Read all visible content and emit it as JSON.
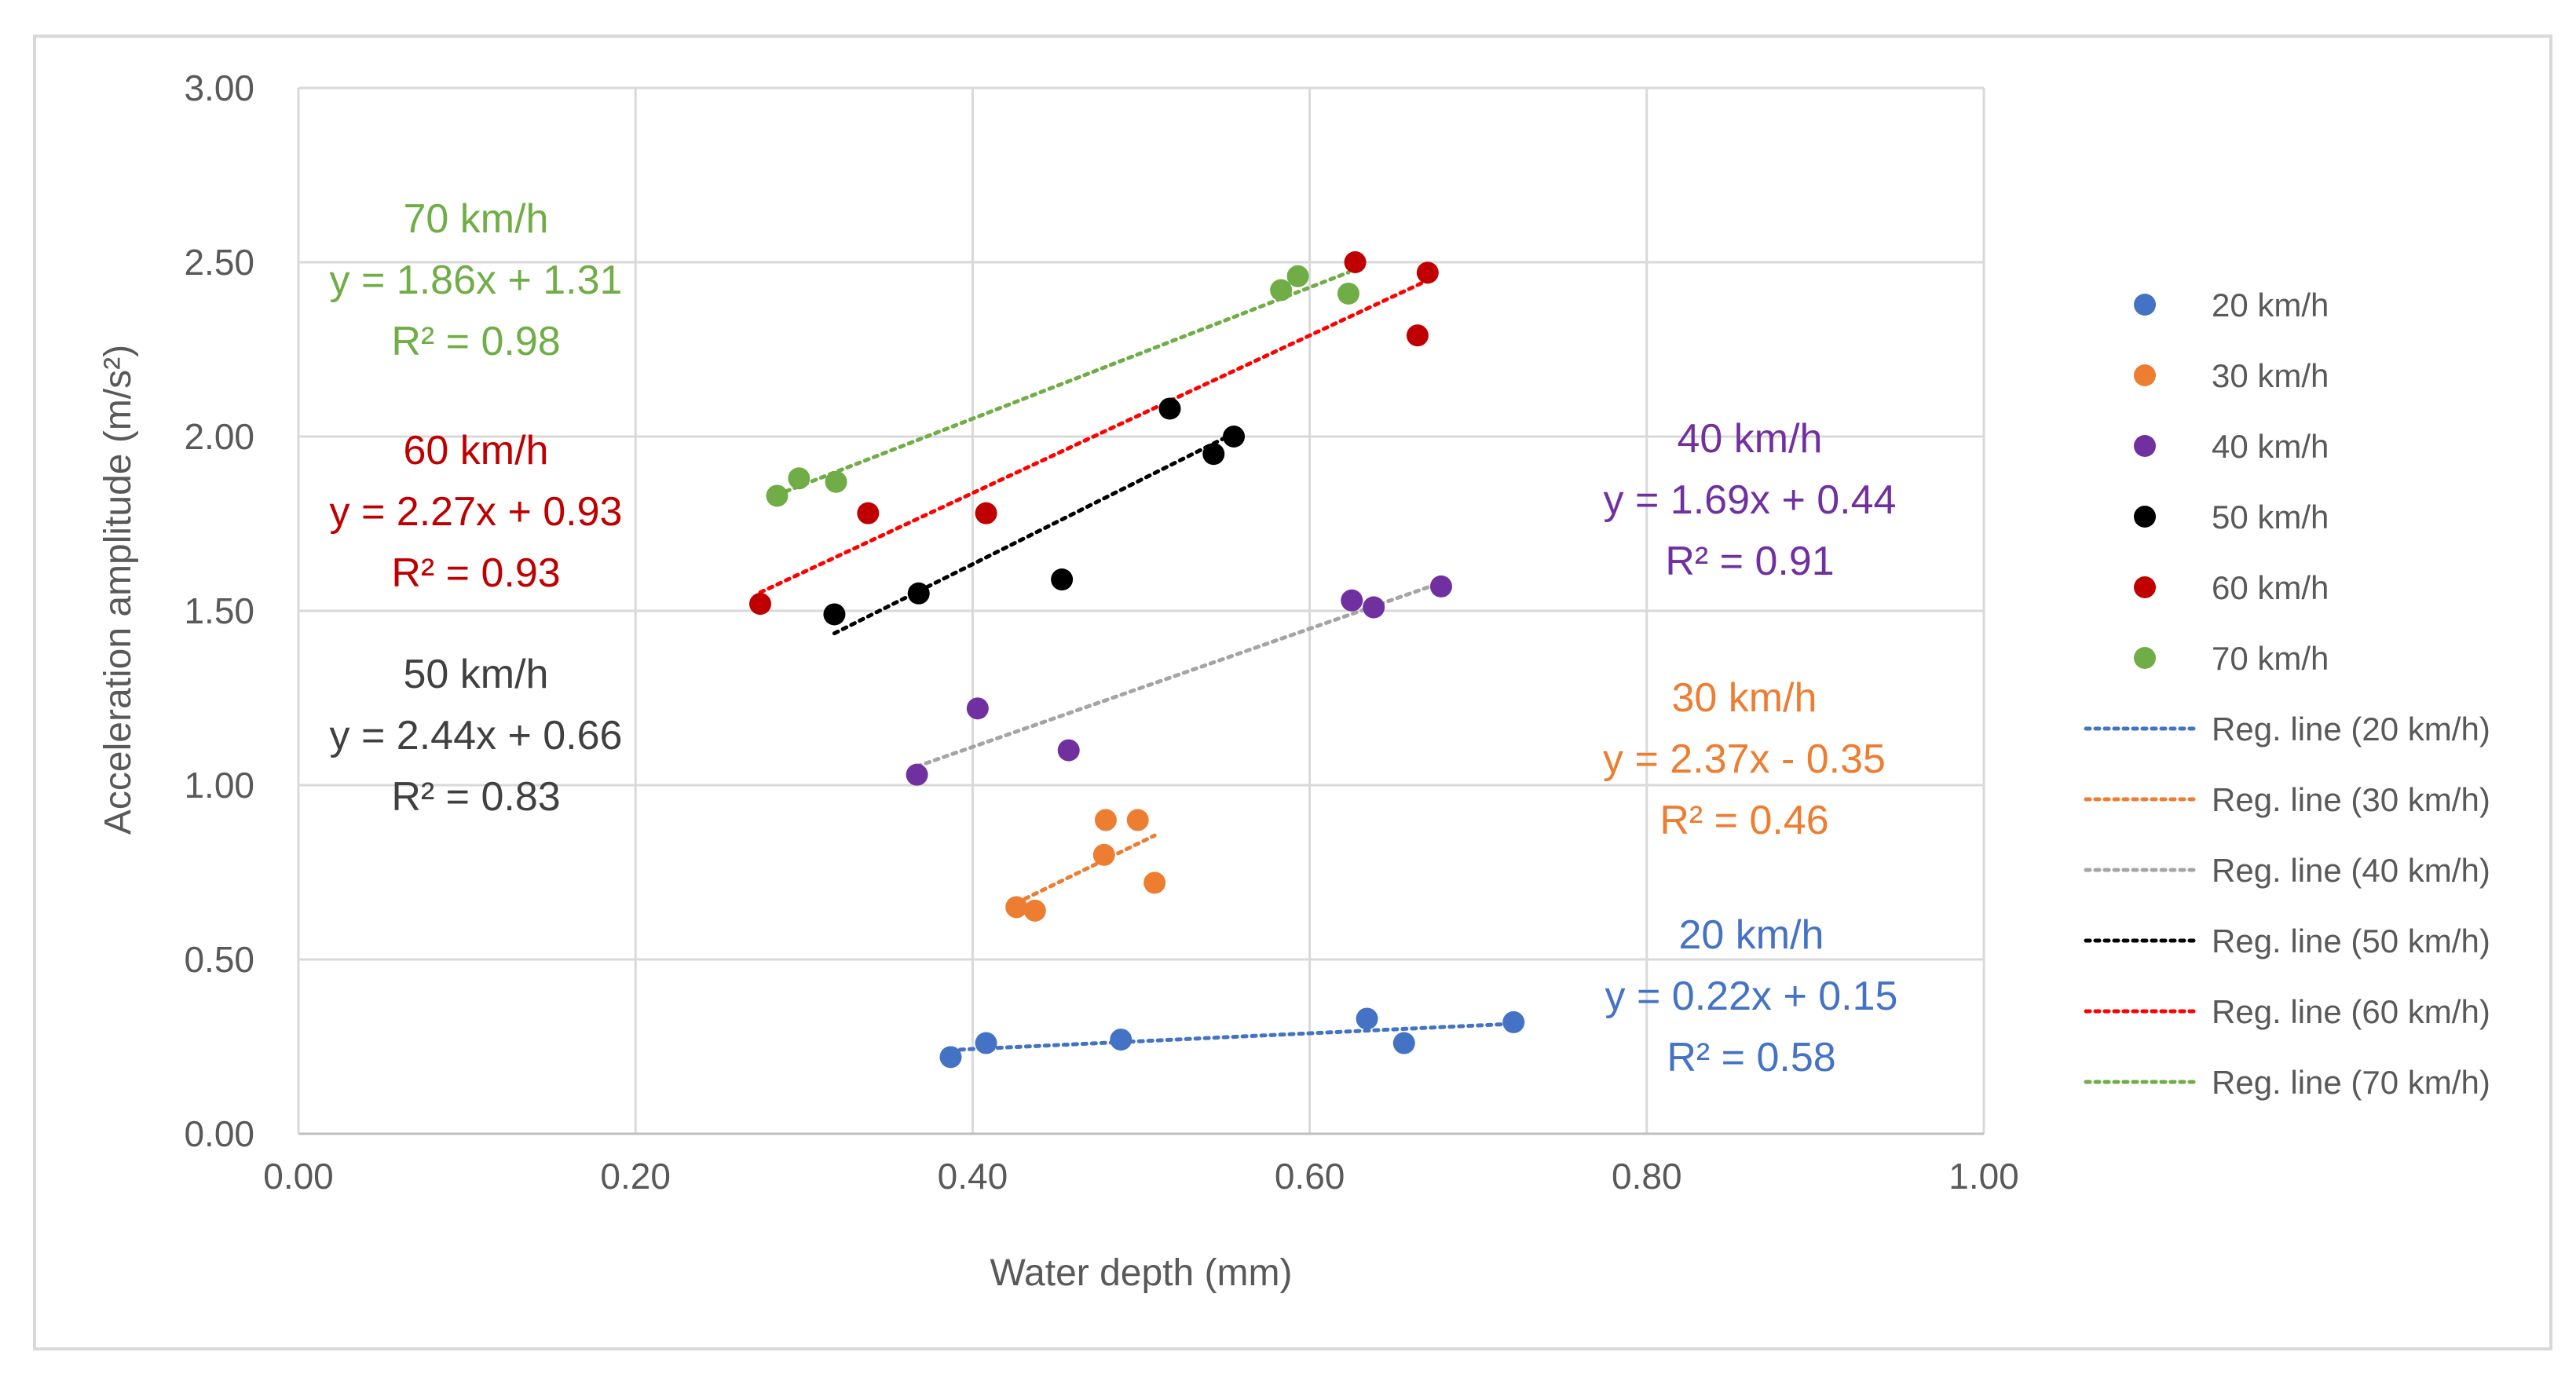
{
  "chart_data": {
    "type": "scatter",
    "title": "",
    "xlabel": "Water depth (mm)",
    "ylabel": "Acceleration amplitude (m/s²)",
    "xlim": [
      0,
      1
    ],
    "ylim": [
      0,
      3
    ],
    "x_ticks": [
      "0.00",
      "0.20",
      "0.40",
      "0.60",
      "0.80",
      "1.00"
    ],
    "y_ticks": [
      "0.00",
      "0.50",
      "1.00",
      "1.50",
      "2.00",
      "2.50",
      "3.00"
    ],
    "grid": true,
    "legend_position": "right",
    "series": [
      {
        "name": "20 km/h",
        "color": "#4472C4",
        "reg_label": "Reg. line (20 km/h)",
        "points": [
          [
            0.387,
            0.22
          ],
          [
            0.408,
            0.26
          ],
          [
            0.488,
            0.27
          ],
          [
            0.634,
            0.33
          ],
          [
            0.656,
            0.26
          ],
          [
            0.721,
            0.32
          ]
        ],
        "reg_range": [
          0.387,
          0.721
        ],
        "annotation": {
          "speed": "20 km/h",
          "equation": "y = 0.22x + 0.15",
          "r2": "R² = 0.58"
        }
      },
      {
        "name": "30 km/h",
        "color": "#ED7D31",
        "reg_label": "Reg. line (30 km/h)",
        "points": [
          [
            0.426,
            0.65
          ],
          [
            0.437,
            0.64
          ],
          [
            0.479,
            0.9
          ],
          [
            0.478,
            0.8
          ],
          [
            0.498,
            0.9
          ],
          [
            0.508,
            0.72
          ]
        ],
        "reg_range": [
          0.426,
          0.508
        ],
        "annotation": {
          "speed": "30 km/h",
          "equation": "y = 2.37x - 0.35",
          "r2": "R² = 0.46"
        }
      },
      {
        "name": "40 km/h",
        "color": "#7030A0",
        "reg_label": "Reg. line (40 km/h)",
        "reg_color": "#A5A5A5",
        "points": [
          [
            0.367,
            1.03
          ],
          [
            0.403,
            1.22
          ],
          [
            0.457,
            1.1
          ],
          [
            0.625,
            1.53
          ],
          [
            0.638,
            1.51
          ],
          [
            0.678,
            1.57
          ]
        ],
        "reg_range": [
          0.367,
          0.678
        ],
        "annotation": {
          "speed": "40 km/h",
          "equation": "y = 1.69x + 0.44",
          "r2": "R² = 0.91"
        }
      },
      {
        "name": "50 km/h",
        "color": "#000000",
        "reg_label": "Reg. line (50 km/h)",
        "annotation_color": "#404040",
        "points": [
          [
            0.318,
            1.49
          ],
          [
            0.368,
            1.55
          ],
          [
            0.453,
            1.59
          ],
          [
            0.517,
            2.08
          ],
          [
            0.543,
            1.95
          ],
          [
            0.555,
            2.0
          ]
        ],
        "reg_range": [
          0.318,
          0.555
        ],
        "annotation": {
          "speed": "50 km/h",
          "equation": "y = 2.44x + 0.66",
          "r2": "R² = 0.83"
        }
      },
      {
        "name": "60 km/h",
        "color": "#C00000",
        "reg_label": "Reg. line (60 km/h)",
        "reg_color": "#FF0000",
        "points": [
          [
            0.274,
            1.52
          ],
          [
            0.338,
            1.78
          ],
          [
            0.408,
            1.78
          ],
          [
            0.627,
            2.5
          ],
          [
            0.664,
            2.29
          ],
          [
            0.67,
            2.47
          ]
        ],
        "reg_range": [
          0.274,
          0.67
        ],
        "annotation": {
          "speed": "60 km/h",
          "equation": "y = 2.27x + 0.93",
          "r2": "R² = 0.93"
        }
      },
      {
        "name": "70 km/h",
        "color": "#70AD47",
        "reg_label": "Reg. line (70 km/h)",
        "points": [
          [
            0.284,
            1.83
          ],
          [
            0.297,
            1.88
          ],
          [
            0.319,
            1.87
          ],
          [
            0.583,
            2.42
          ],
          [
            0.593,
            2.46
          ],
          [
            0.623,
            2.41
          ]
        ],
        "reg_range": [
          0.284,
          0.623
        ],
        "annotation": {
          "speed": "70 km/h",
          "equation": "y = 1.86x + 1.31",
          "r2": "R² = 0.98"
        }
      }
    ]
  }
}
